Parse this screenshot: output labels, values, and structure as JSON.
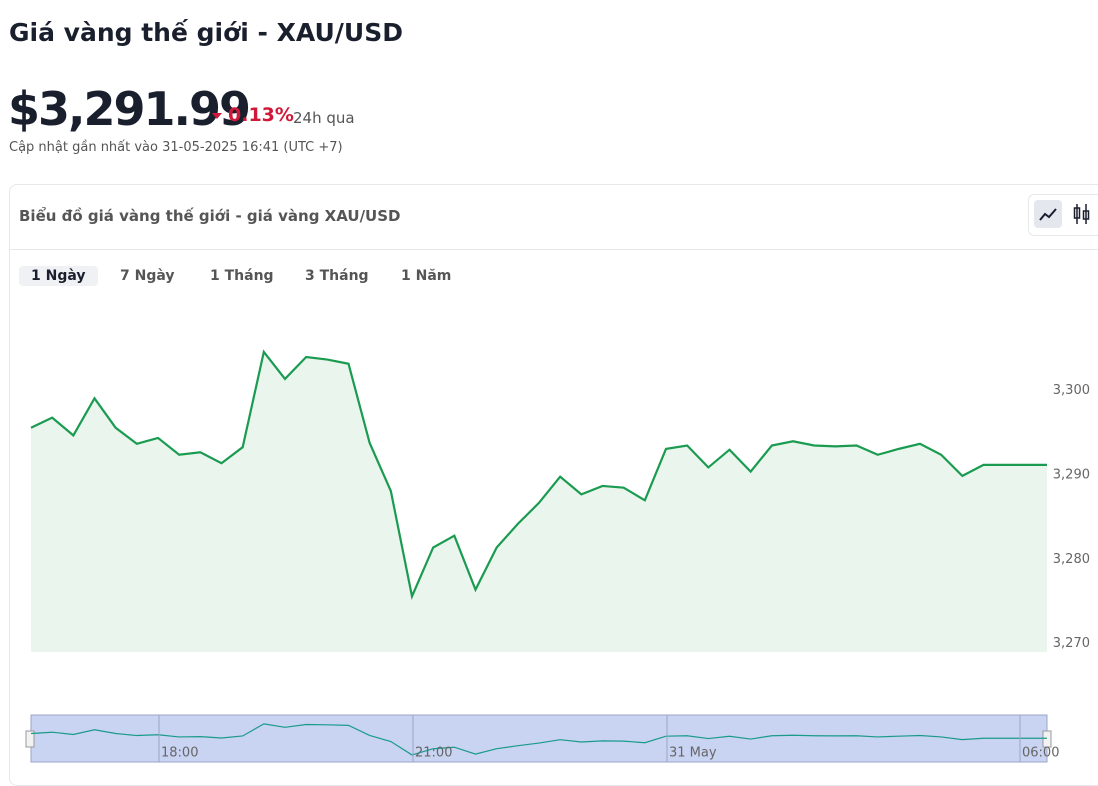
{
  "header": {
    "title": "Giá vàng thế giới - XAU/USD",
    "price": "$3,291.99",
    "change": "0.13%",
    "period": "24h qua",
    "updated": "Cập nhật gần nhất vào 31-05-2025 16:41 (UTC +7)"
  },
  "card": {
    "title": "Biểu đồ giá vàng thế giới - giá vàng XAU/USD",
    "tabs": [
      "1 Ngày",
      "7 Ngày",
      "1 Tháng",
      "3 Tháng",
      "1 Năm"
    ]
  },
  "chart_data": {
    "type": "line",
    "color": "#1a9b50",
    "values": [
      3295.6,
      3296.8,
      3294.7,
      3299.1,
      3295.6,
      3293.7,
      3294.4,
      3292.4,
      3292.7,
      3291.4,
      3293.3,
      3304.6,
      3301.4,
      3304.0,
      3303.7,
      3303.2,
      3293.8,
      3288.1,
      3275.6,
      3281.4,
      3282.8,
      3276.4,
      3281.4,
      3284.2,
      3286.7,
      3289.8,
      3287.7,
      3288.7,
      3288.5,
      3287.0,
      3293.1,
      3293.5,
      3290.9,
      3293.0,
      3290.4,
      3293.5,
      3294.0,
      3293.5,
      3293.4,
      3293.5,
      3292.4,
      3293.1,
      3293.7,
      3292.4,
      3289.9,
      3291.2,
      3291.2,
      3291.2,
      3291.2
    ],
    "ylim": [
      3269,
      3311
    ],
    "yticks": [
      {
        "value": 3270,
        "label": "3,270"
      },
      {
        "value": 3280,
        "label": "3,280"
      },
      {
        "value": 3290,
        "label": "3,290"
      },
      {
        "value": 3300,
        "label": "3,300"
      }
    ],
    "navigator_labels": [
      "18:00",
      "21:00",
      "31 May",
      "06:00"
    ]
  }
}
